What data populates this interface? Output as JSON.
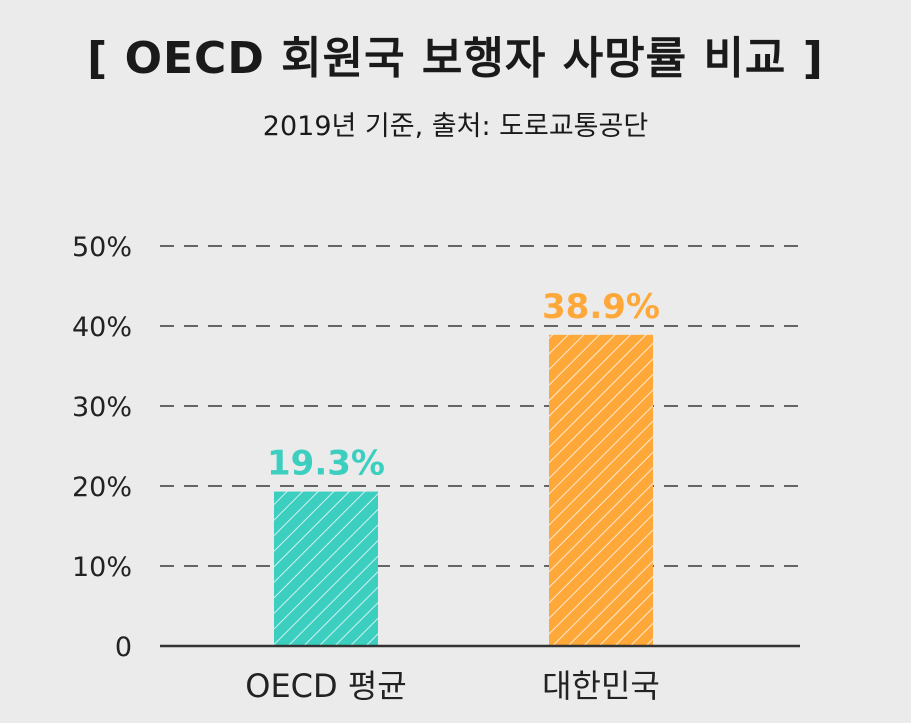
{
  "colors": {
    "background": "#ebebeb",
    "oecd": "#3ccfc0",
    "korea": "#ffa83a",
    "grid": "#666666"
  },
  "chart_data": {
    "type": "bar",
    "title": "[ OECD 회원국 보행자 사망률 비교 ]",
    "subtitle": "2019년 기준, 출처: 도로교통공단",
    "categories": [
      "OECD 평균",
      "대한민국"
    ],
    "values": [
      19.3,
      38.9
    ],
    "data_labels": [
      "19.3%",
      "38.9%"
    ],
    "bar_colors": [
      "#3ccfc0",
      "#ffa83a"
    ],
    "bar_pattern": "diagonal-stripes",
    "yticks": [
      0,
      10,
      20,
      30,
      40,
      50
    ],
    "ytick_labels": [
      "0",
      "10%",
      "20%",
      "30%",
      "40%",
      "50%"
    ],
    "ylim": [
      0,
      50
    ],
    "grid": true,
    "grid_style": "dashed",
    "legend": "none"
  }
}
